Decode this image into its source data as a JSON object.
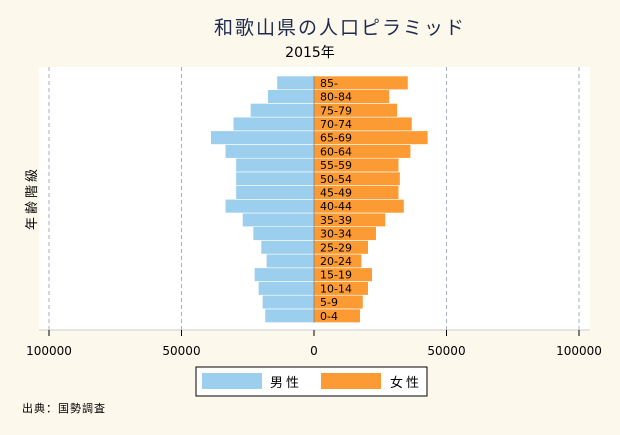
{
  "chart_data": {
    "type": "bar",
    "title": "和歌山県の人口ピラミッド",
    "subtitle": "2015年",
    "ylabel": "年齢階級",
    "xlim": [
      -100000,
      100000
    ],
    "xticks": [
      "100000",
      "50000",
      "0",
      "50000",
      "100000"
    ],
    "xtick_values": [
      -100000,
      -50000,
      0,
      50000,
      100000
    ],
    "grid": true,
    "legend_position": "bottom",
    "categories": [
      "0-4",
      "5-9",
      "10-14",
      "15-19",
      "20-24",
      "25-29",
      "30-34",
      "35-39",
      "40-44",
      "45-49",
      "50-54",
      "55-59",
      "60-64",
      "65-69",
      "70-74",
      "75-79",
      "80-84",
      "85-"
    ],
    "series": [
      {
        "name": "男性",
        "color": "#9ccfee",
        "values": [
          18500,
          19500,
          21000,
          22500,
          18000,
          20000,
          23000,
          27000,
          33500,
          29500,
          29500,
          29500,
          33500,
          39000,
          30500,
          24000,
          17500,
          14000
        ]
      },
      {
        "name": "女性",
        "color": "#fc9b34",
        "values": [
          17500,
          18500,
          20500,
          22000,
          18000,
          20500,
          23500,
          27000,
          34000,
          32000,
          32500,
          32000,
          36500,
          43000,
          37000,
          31500,
          28500,
          35500
        ]
      }
    ]
  },
  "source": "出典：国勢調査"
}
